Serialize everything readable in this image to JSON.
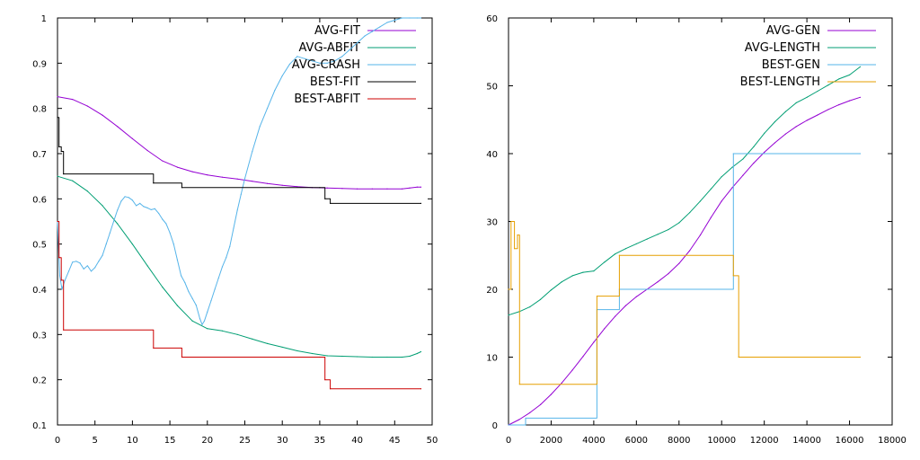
{
  "chart_data": [
    {
      "type": "line",
      "title": "",
      "xlabel": "",
      "ylabel": "",
      "xlim": [
        0,
        50
      ],
      "ylim": [
        0.1,
        1
      ],
      "xticks": [
        0,
        5,
        10,
        15,
        20,
        25,
        30,
        35,
        40,
        45,
        50
      ],
      "yticks": [
        0.1,
        0.2,
        0.3,
        0.4,
        0.5,
        0.6,
        0.7,
        0.8,
        0.9,
        1
      ],
      "grid": false,
      "legend_position": "top-right",
      "series": [
        {
          "name": "AVG-FIT",
          "color": "#9400d3",
          "step": false,
          "x": [
            0,
            2,
            4,
            6,
            8,
            10,
            12,
            14,
            16,
            18,
            20,
            22,
            24,
            26,
            28,
            30,
            32,
            34,
            36,
            38,
            40,
            42,
            44,
            46,
            47,
            48,
            48.5
          ],
          "y": [
            0.826,
            0.82,
            0.805,
            0.785,
            0.76,
            0.733,
            0.707,
            0.684,
            0.67,
            0.66,
            0.653,
            0.648,
            0.644,
            0.639,
            0.634,
            0.63,
            0.627,
            0.625,
            0.624,
            0.623,
            0.622,
            0.622,
            0.622,
            0.622,
            0.624,
            0.626,
            0.626
          ]
        },
        {
          "name": "AVG-ABFIT",
          "color": "#009e73",
          "step": false,
          "x": [
            0,
            2,
            4,
            6,
            8,
            10,
            12,
            14,
            16,
            18,
            20,
            22,
            24,
            26,
            28,
            30,
            32,
            34,
            36,
            38,
            40,
            42,
            44,
            46,
            47,
            48,
            48.5
          ],
          "y": [
            0.65,
            0.64,
            0.617,
            0.585,
            0.545,
            0.5,
            0.452,
            0.405,
            0.364,
            0.33,
            0.313,
            0.308,
            0.3,
            0.29,
            0.28,
            0.272,
            0.264,
            0.258,
            0.253,
            0.252,
            0.251,
            0.25,
            0.25,
            0.25,
            0.252,
            0.258,
            0.262
          ]
        },
        {
          "name": "AVG-CRASH",
          "color": "#56b4e9",
          "step": false,
          "x": [
            0,
            0.3,
            0.6,
            1,
            1.5,
            2,
            2.5,
            3,
            3.5,
            4,
            4.5,
            5,
            5.5,
            6,
            6.5,
            7,
            7.5,
            8,
            8.5,
            9,
            9.5,
            10,
            10.5,
            11,
            11.5,
            12,
            12.5,
            13,
            13.5,
            14,
            14.5,
            15,
            15.5,
            16,
            16.5,
            17,
            17.5,
            18,
            18.5,
            19,
            19.3,
            19.6,
            20,
            20.5,
            21,
            21.5,
            22,
            22.5,
            23,
            23.5,
            24,
            24.5,
            25,
            26,
            27,
            28,
            29,
            30,
            31,
            32,
            33,
            34,
            35,
            36,
            37,
            38,
            39,
            40,
            41,
            42,
            43,
            44,
            45,
            46,
            47,
            48,
            48.5
          ],
          "y": [
            0.55,
            0.43,
            0.4,
            0.42,
            0.44,
            0.46,
            0.462,
            0.458,
            0.445,
            0.452,
            0.44,
            0.448,
            0.462,
            0.475,
            0.5,
            0.525,
            0.55,
            0.575,
            0.595,
            0.605,
            0.603,
            0.597,
            0.585,
            0.59,
            0.583,
            0.58,
            0.576,
            0.578,
            0.568,
            0.555,
            0.545,
            0.525,
            0.5,
            0.465,
            0.43,
            0.415,
            0.395,
            0.38,
            0.365,
            0.335,
            0.322,
            0.33,
            0.35,
            0.375,
            0.4,
            0.425,
            0.45,
            0.47,
            0.495,
            0.535,
            0.575,
            0.61,
            0.645,
            0.705,
            0.76,
            0.8,
            0.84,
            0.872,
            0.898,
            0.915,
            0.91,
            0.905,
            0.9,
            0.9,
            0.905,
            0.915,
            0.93,
            0.945,
            0.96,
            0.97,
            0.98,
            0.99,
            0.995,
            1.0,
            1.0,
            1.0,
            1.0
          ]
        },
        {
          "name": "BEST-FIT",
          "color": "#000000",
          "step": true,
          "x": [
            0,
            0.2,
            0.5,
            0.8,
            12.8,
            16.6,
            35.0,
            35.7,
            36.4,
            48.5
          ],
          "y": [
            0.78,
            0.715,
            0.705,
            0.655,
            0.635,
            0.625,
            0.625,
            0.6,
            0.59,
            0.59
          ]
        },
        {
          "name": "BEST-ABFIT",
          "color": "#cc0000",
          "step": true,
          "x": [
            0,
            0.2,
            0.5,
            0.8,
            12.8,
            16.6,
            35.0,
            35.7,
            36.4,
            48.5
          ],
          "y": [
            0.55,
            0.47,
            0.42,
            0.31,
            0.27,
            0.25,
            0.25,
            0.2,
            0.18,
            0.18
          ]
        }
      ]
    },
    {
      "type": "line",
      "title": "",
      "xlabel": "",
      "ylabel": "",
      "xlim": [
        0,
        18000
      ],
      "ylim": [
        0,
        60
      ],
      "xticks": [
        0,
        2000,
        4000,
        6000,
        8000,
        10000,
        12000,
        14000,
        16000,
        18000
      ],
      "yticks": [
        0,
        10,
        20,
        30,
        40,
        50,
        60
      ],
      "grid": false,
      "legend_position": "top-right",
      "series": [
        {
          "name": "AVG-GEN",
          "color": "#9400d3",
          "step": false,
          "x": [
            0,
            500,
            1000,
            1500,
            2000,
            2500,
            3000,
            3500,
            4000,
            4500,
            5000,
            5500,
            6000,
            6500,
            7000,
            7500,
            8000,
            8500,
            9000,
            9500,
            10000,
            10500,
            11000,
            11500,
            12000,
            12500,
            13000,
            13500,
            14000,
            14500,
            15000,
            15500,
            16000,
            16500
          ],
          "y": [
            0,
            0.8,
            1.8,
            3.0,
            4.5,
            6.2,
            8.1,
            10.1,
            12.2,
            14.2,
            16.0,
            17.6,
            18.9,
            20.0,
            21.1,
            22.3,
            23.8,
            25.7,
            28.0,
            30.6,
            33.0,
            35.0,
            36.8,
            38.6,
            40.2,
            41.6,
            42.9,
            44.0,
            44.9,
            45.7,
            46.5,
            47.2,
            47.8,
            48.3
          ]
        },
        {
          "name": "AVG-LENGTH",
          "color": "#009e73",
          "step": false,
          "x": [
            0,
            500,
            1000,
            1500,
            2000,
            2500,
            3000,
            3500,
            4000,
            4500,
            5000,
            5500,
            6000,
            6500,
            7000,
            7500,
            8000,
            8500,
            9000,
            9500,
            10000,
            10500,
            11000,
            11500,
            12000,
            12500,
            13000,
            13500,
            14000,
            14500,
            15000,
            15500,
            16000,
            16500
          ],
          "y": [
            16.2,
            16.7,
            17.4,
            18.5,
            19.9,
            21.1,
            22.0,
            22.5,
            22.7,
            24.0,
            25.2,
            26.0,
            26.7,
            27.4,
            28.1,
            28.8,
            29.8,
            31.3,
            33.0,
            34.8,
            36.6,
            38.0,
            39.2,
            41.0,
            43.0,
            44.7,
            46.2,
            47.5,
            48.3,
            49.2,
            50.1,
            51.0,
            51.6,
            52.8
          ]
        },
        {
          "name": "BEST-GEN",
          "color": "#56b4e9",
          "step": true,
          "x": [
            0,
            800,
            4150,
            5200,
            10550,
            16500
          ],
          "y": [
            0,
            1,
            17,
            20,
            40,
            40
          ]
        },
        {
          "name": "BEST-LENGTH",
          "color": "#e69f00",
          "step": true,
          "x": [
            0,
            120,
            280,
            420,
            520,
            4150,
            5200,
            10550,
            10800,
            16500
          ],
          "y": [
            20,
            30,
            26,
            28,
            6,
            19,
            25,
            22,
            10,
            10
          ]
        }
      ]
    }
  ]
}
